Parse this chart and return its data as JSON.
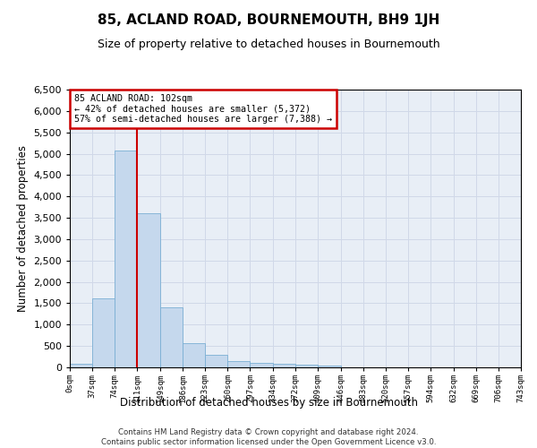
{
  "title": "85, ACLAND ROAD, BOURNEMOUTH, BH9 1JH",
  "subtitle": "Size of property relative to detached houses in Bournemouth",
  "xlabel": "Distribution of detached houses by size in Bournemouth",
  "ylabel": "Number of detached properties",
  "footer_line1": "Contains HM Land Registry data © Crown copyright and database right 2024.",
  "footer_line2": "Contains public sector information licensed under the Open Government Licence v3.0.",
  "bin_edges": [
    0,
    37,
    74,
    111,
    149,
    186,
    223,
    260,
    297,
    334,
    372,
    409,
    446,
    483,
    520,
    557,
    594,
    632,
    669,
    706,
    743
  ],
  "bin_labels": [
    "0sqm",
    "37sqm",
    "74sqm",
    "111sqm",
    "149sqm",
    "186sqm",
    "223sqm",
    "260sqm",
    "297sqm",
    "334sqm",
    "372sqm",
    "409sqm",
    "446sqm",
    "483sqm",
    "520sqm",
    "557sqm",
    "594sqm",
    "632sqm",
    "669sqm",
    "706sqm",
    "743sqm"
  ],
  "counts": [
    75,
    1625,
    5075,
    3600,
    1400,
    575,
    290,
    140,
    100,
    75,
    60,
    50,
    0,
    0,
    0,
    0,
    0,
    0,
    0,
    0
  ],
  "bar_color": "#c5d8ed",
  "bar_edge_color": "#7aafd4",
  "grid_color": "#d0d8e8",
  "background_color": "#e8eef6",
  "property_label": "85 ACLAND ROAD: 102sqm",
  "pct_smaller": 42,
  "n_smaller": 5372,
  "pct_larger_semi": 57,
  "n_larger_semi": 7388,
  "vline_x": 111,
  "vline_color": "#cc0000",
  "annotation_box_color": "#cc0000",
  "ylim": [
    0,
    6500
  ],
  "yticks": [
    0,
    500,
    1000,
    1500,
    2000,
    2500,
    3000,
    3500,
    4000,
    4500,
    5000,
    5500,
    6000,
    6500
  ]
}
